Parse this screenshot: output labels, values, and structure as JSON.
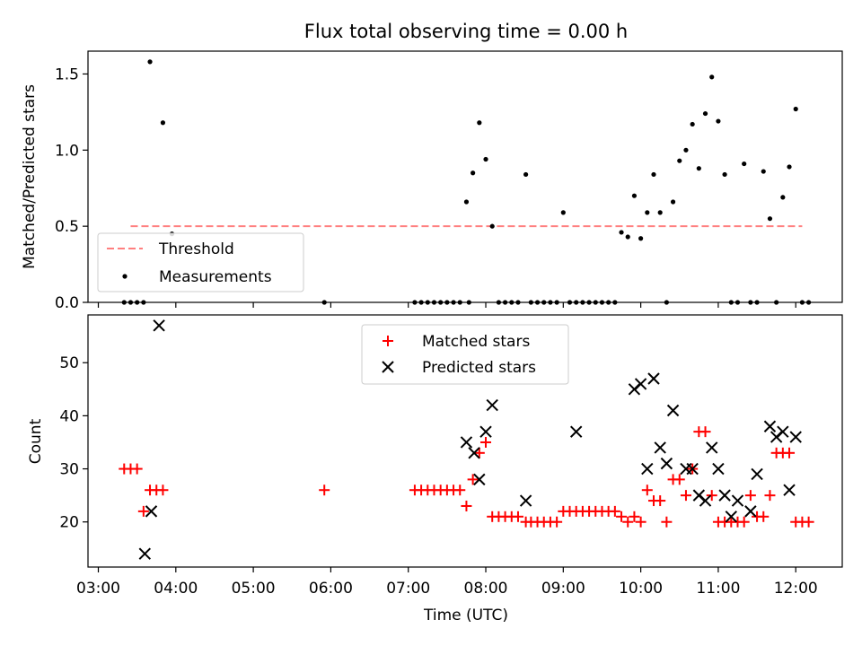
{
  "title": "Flux total observing time = 0.00 h",
  "chart_data": [
    {
      "type": "scatter",
      "ylabel": "Matched/Predicted stars",
      "ylim": [
        0,
        1.65
      ],
      "yticks": [
        "0.0",
        "0.5",
        "1.0",
        "1.5"
      ],
      "ytick_values": [
        0,
        0.5,
        1.0,
        1.5
      ],
      "xlim": [
        "02:52",
        "12:36"
      ],
      "legend_position": "lower-left",
      "series": [
        {
          "name": "Threshold",
          "style": "dashed-line",
          "color": "#ff7f7f",
          "x": [
            "03:25",
            "12:05"
          ],
          "y": [
            0.5,
            0.5
          ]
        },
        {
          "name": "Measurements",
          "style": "dot",
          "color": "#000000",
          "x": [
            "03:20",
            "03:25",
            "03:30",
            "03:35",
            "03:40",
            "03:50",
            "03:57",
            "05:55",
            "07:05",
            "07:10",
            "07:15",
            "07:20",
            "07:25",
            "07:30",
            "07:35",
            "07:40",
            "07:45",
            "07:50",
            "07:55",
            "08:00",
            "08:05",
            "07:47",
            "08:10",
            "08:15",
            "08:20",
            "08:25",
            "08:31",
            "08:35",
            "08:40",
            "08:45",
            "08:50",
            "08:55",
            "09:00",
            "09:05",
            "09:10",
            "09:15",
            "09:20",
            "09:25",
            "09:30",
            "09:35",
            "09:40",
            "09:45",
            "09:50",
            "09:55",
            "10:00",
            "10:05",
            "10:10",
            "10:15",
            "10:20",
            "10:25",
            "10:30",
            "10:35",
            "10:40",
            "10:45",
            "10:50",
            "10:55",
            "11:00",
            "11:05",
            "11:10",
            "11:15",
            "11:20",
            "11:25",
            "11:30",
            "11:35",
            "11:40",
            "11:45",
            "11:50",
            "11:55",
            "12:00",
            "12:05",
            "12:10"
          ],
          "y": [
            0,
            0,
            0,
            0,
            1.58,
            1.18,
            0.45,
            0,
            0,
            0,
            0,
            0,
            0,
            0,
            0,
            0,
            0.66,
            0.85,
            1.18,
            0.94,
            0.5,
            0,
            0,
            0,
            0,
            0,
            0.84,
            0,
            0,
            0,
            0,
            0,
            0.59,
            0,
            0,
            0,
            0,
            0,
            0,
            0,
            0,
            0.46,
            0.43,
            0.7,
            0.42,
            0.59,
            0.84,
            0.59,
            0,
            0.66,
            0.93,
            1.0,
            1.17,
            0.88,
            1.24,
            1.48,
            1.19,
            0.84,
            0,
            0,
            0.91,
            0,
            0,
            0.86,
            0.55,
            0,
            0.69,
            0.89,
            1.27,
            0,
            0
          ]
        }
      ]
    },
    {
      "type": "scatter",
      "xlabel": "Time (UTC)",
      "ylabel": "Count",
      "ylim": [
        11.5,
        59
      ],
      "yticks": [
        "20",
        "30",
        "40",
        "50"
      ],
      "ytick_values": [
        20,
        30,
        40,
        50
      ],
      "xlim": [
        "02:52",
        "12:36"
      ],
      "xticks": [
        "03:00",
        "04:00",
        "05:00",
        "06:00",
        "07:00",
        "08:00",
        "09:00",
        "10:00",
        "11:00",
        "12:00"
      ],
      "legend_position": "upper-center",
      "series": [
        {
          "name": "Matched stars",
          "marker": "+",
          "color": "#ff0000",
          "x": [
            "03:20",
            "03:25",
            "03:30",
            "03:35",
            "03:40",
            "03:45",
            "03:50",
            "05:55",
            "07:05",
            "07:10",
            "07:15",
            "07:20",
            "07:25",
            "07:30",
            "07:35",
            "07:40",
            "07:45",
            "07:50",
            "07:55",
            "08:00",
            "08:05",
            "08:10",
            "08:15",
            "08:20",
            "08:25",
            "08:31",
            "08:35",
            "08:40",
            "08:45",
            "08:50",
            "08:55",
            "09:00",
            "09:05",
            "09:10",
            "09:15",
            "09:20",
            "09:25",
            "09:30",
            "09:35",
            "09:40",
            "09:45",
            "09:50",
            "09:55",
            "10:00",
            "10:05",
            "10:10",
            "10:15",
            "10:20",
            "10:25",
            "10:30",
            "10:35",
            "10:40",
            "10:45",
            "10:50",
            "10:55",
            "11:00",
            "11:05",
            "11:10",
            "11:15",
            "11:20",
            "11:25",
            "11:30",
            "11:35",
            "11:40",
            "11:45",
            "11:50",
            "11:55",
            "12:00",
            "12:05",
            "12:10"
          ],
          "y": [
            30,
            30,
            30,
            22,
            26,
            26,
            26,
            26,
            26,
            26,
            26,
            26,
            26,
            26,
            26,
            26,
            23,
            28,
            33,
            35,
            21,
            21,
            21,
            21,
            21,
            20,
            20,
            20,
            20,
            20,
            20,
            22,
            22,
            22,
            22,
            22,
            22,
            22,
            22,
            22,
            21,
            20,
            21,
            20,
            26,
            24,
            24,
            20,
            28,
            28,
            25,
            30,
            37,
            37,
            25,
            20,
            20,
            20,
            20,
            20,
            25,
            21,
            21,
            25,
            33,
            33,
            33,
            20,
            20,
            20
          ]
        },
        {
          "name": "Predicted stars",
          "marker": "x",
          "color": "#000000",
          "x": [
            "03:36",
            "03:41",
            "03:47",
            "07:45",
            "07:51",
            "07:55",
            "08:00",
            "08:05",
            "08:31",
            "09:10",
            "09:55",
            "10:00",
            "10:05",
            "10:10",
            "10:15",
            "10:20",
            "10:25",
            "10:35",
            "10:40",
            "10:45",
            "10:50",
            "10:55",
            "11:00",
            "11:05",
            "11:10",
            "11:15",
            "11:25",
            "11:30",
            "11:40",
            "11:45",
            "11:50",
            "11:55",
            "12:00"
          ],
          "y": [
            14,
            22,
            57,
            35,
            33,
            28,
            37,
            42,
            24,
            37,
            45,
            46,
            30,
            47,
            34,
            31,
            41,
            30,
            30,
            25,
            24,
            34,
            30,
            25,
            21,
            24,
            22,
            29,
            38,
            36,
            37,
            26,
            36
          ]
        }
      ]
    }
  ]
}
